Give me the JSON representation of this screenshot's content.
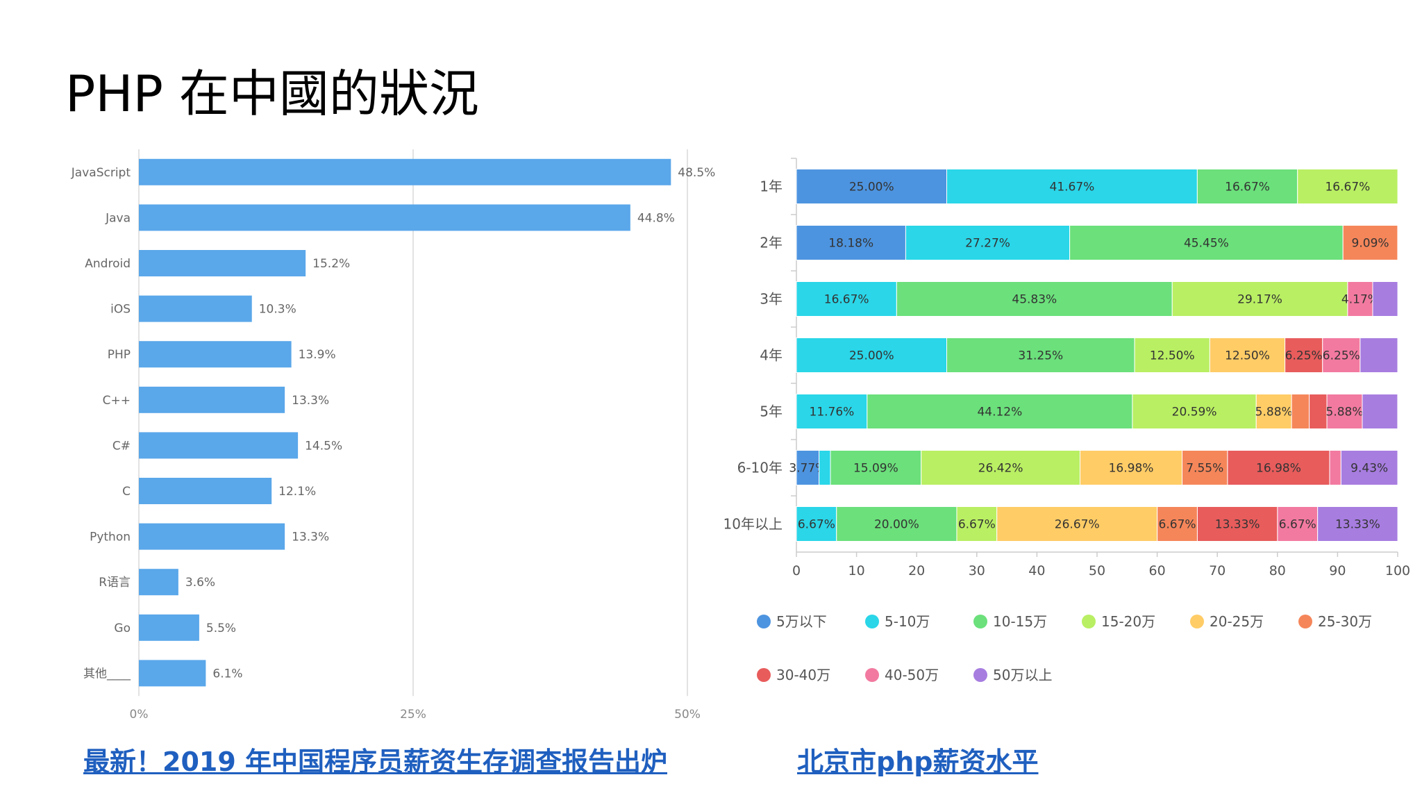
{
  "slide": {
    "title": "PHP 在中國的狀況",
    "link_left": "最新！2019 年中国程序员薪资生存调查报告出炉",
    "link_right": "北京市php薪资水平"
  },
  "chart_data": [
    {
      "type": "bar",
      "orientation": "horizontal",
      "categories": [
        "JavaScript",
        "Java",
        "Android",
        "iOS",
        "PHP",
        "C++",
        "C#",
        "C",
        "Python",
        "R语言",
        "Go",
        "其他____"
      ],
      "values": [
        48.5,
        44.8,
        15.2,
        10.3,
        13.9,
        13.3,
        14.5,
        12.1,
        13.3,
        3.6,
        5.5,
        6.1
      ],
      "data_labels": [
        "48.5%",
        "44.8%",
        "15.2%",
        "10.3%",
        "13.9%",
        "13.3%",
        "14.5%",
        "12.1%",
        "13.3%",
        "3.6%",
        "5.5%",
        "6.1%"
      ],
      "xlim": [
        0,
        50
      ],
      "xticks": [
        "0%",
        "25%",
        "50%"
      ],
      "grid": true,
      "color": "#5aa7ea"
    },
    {
      "type": "bar",
      "orientation": "horizontal",
      "stacked": true,
      "categories": [
        "1年",
        "2年",
        "3年",
        "4年",
        "5年",
        "6-10年",
        "10年以上"
      ],
      "xlim": [
        0,
        100
      ],
      "xticks": [
        "0",
        "10",
        "20",
        "30",
        "40",
        "50",
        "60",
        "70",
        "80",
        "90",
        "100"
      ],
      "legend_position": "bottom",
      "series": [
        {
          "name": "5万以下",
          "color": "#4d94e0",
          "values": [
            25.0,
            18.18,
            0,
            0,
            0,
            3.77,
            0
          ]
        },
        {
          "name": "5-10万",
          "color": "#2ad6e8",
          "values": [
            41.67,
            27.27,
            16.67,
            25.0,
            11.76,
            1.89,
            6.67
          ]
        },
        {
          "name": "10-15万",
          "color": "#6be07b",
          "values": [
            16.67,
            45.45,
            45.83,
            31.25,
            44.12,
            15.09,
            20.0
          ]
        },
        {
          "name": "15-20万",
          "color": "#b9ef63",
          "values": [
            16.67,
            0,
            29.17,
            12.5,
            20.59,
            26.42,
            6.67
          ]
        },
        {
          "name": "20-25万",
          "color": "#ffcc66",
          "values": [
            0,
            0,
            0,
            12.5,
            5.88,
            16.98,
            26.67
          ]
        },
        {
          "name": "25-30万",
          "color": "#f5865a",
          "values": [
            0,
            9.09,
            0,
            0,
            2.94,
            7.55,
            6.67
          ]
        },
        {
          "name": "30-40万",
          "color": "#e85c5c",
          "values": [
            0,
            0,
            0,
            6.25,
            2.94,
            16.98,
            13.33
          ]
        },
        {
          "name": "40-50万",
          "color": "#f27aa0",
          "values": [
            0,
            0,
            4.17,
            6.25,
            5.88,
            1.89,
            6.67
          ]
        },
        {
          "name": "50万以上",
          "color": "#a77de0",
          "values": [
            0,
            0,
            4.17,
            6.25,
            5.88,
            9.43,
            13.33
          ]
        }
      ],
      "data_labels": [
        [
          "25.00%",
          "41.67%",
          "16.67%",
          "16.67%",
          "",
          "",
          "",
          "",
          ""
        ],
        [
          "18.18%",
          "27.27%",
          "45.45%",
          "",
          "",
          "9.09%",
          "",
          "",
          ""
        ],
        [
          "",
          "16.67%",
          "45.83%",
          "29.17%",
          "",
          "",
          "",
          "4.17%",
          ""
        ],
        [
          "",
          "25.00%",
          "31.25%",
          "12.50%",
          "12.50%",
          "",
          "6.25%",
          "6.25%",
          ""
        ],
        [
          "",
          "11.76%",
          "44.12%",
          "20.59%",
          "5.88%",
          "",
          "",
          "5.88%",
          ""
        ],
        [
          "3.77%",
          "",
          "15.09%",
          "26.42%",
          "16.98%",
          "7.55%",
          "16.98%",
          "",
          "9.43%"
        ],
        [
          "",
          "6.67%",
          "20.00%",
          "6.67%",
          "26.67%",
          "6.67%",
          "13.33%",
          "6.67%",
          "13.33%"
        ]
      ]
    }
  ]
}
